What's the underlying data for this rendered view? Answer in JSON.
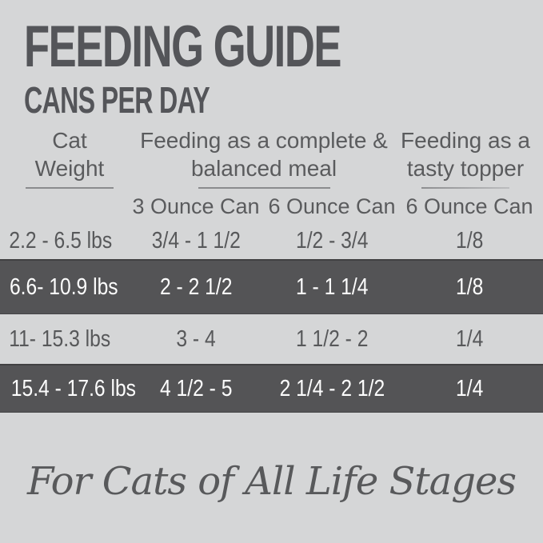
{
  "header": {
    "title": "FEEDING GUIDE",
    "subtitle": "CANS PER DAY"
  },
  "table": {
    "weight_header": {
      "line1": "Cat",
      "line2": "Weight"
    },
    "meal_header": {
      "line1": "Feeding as a complete &",
      "line2": "balanced meal"
    },
    "topper_header": {
      "line1": "Feeding as a",
      "line2": "tasty topper"
    },
    "subcolumns": [
      "3 Ounce Can",
      "6 Ounce Can",
      "6 Ounce Can"
    ],
    "rows": [
      {
        "weight": "2.2 - 6.5 lbs",
        "meal_3oz": "3/4 - 1 1/2",
        "meal_6oz": "1/2 - 3/4",
        "topper_6oz": "1/8",
        "dark": false
      },
      {
        "weight": "6.6- 10.9 lbs",
        "meal_3oz": "2 - 2 1/2",
        "meal_6oz": "1 - 1 1/4",
        "topper_6oz": "1/8",
        "dark": true
      },
      {
        "weight": "11- 15.3 lbs",
        "meal_3oz": "3 - 4",
        "meal_6oz": "1 1/2 - 2",
        "topper_6oz": "1/4",
        "dark": false
      },
      {
        "weight": "15.4 - 17.6 lbs",
        "meal_3oz": "4 1/2 - 5",
        "meal_6oz": "2 1/4 - 2 1/2",
        "topper_6oz": "1/4",
        "dark": true
      }
    ]
  },
  "footer": {
    "tagline": "For Cats of All Life Stages"
  },
  "colors": {
    "background": "#d5d6d7",
    "dark_row": "#545456",
    "text_dark": "#545559",
    "text_light": "#fdfdfd",
    "underline": "#8b8c8e"
  }
}
